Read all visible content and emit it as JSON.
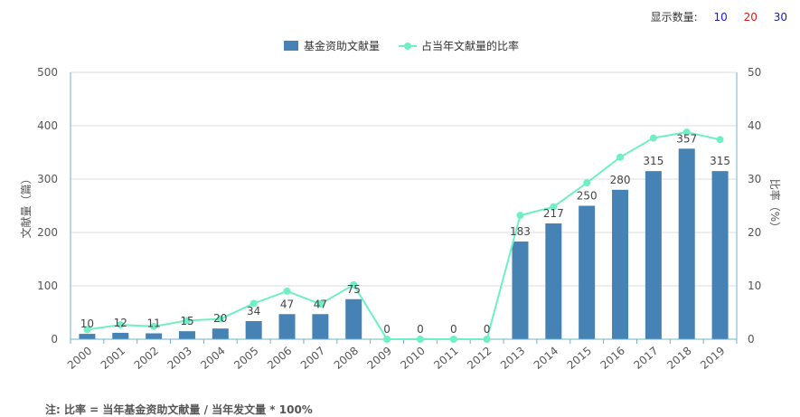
{
  "display_count": {
    "label": "显示数量:",
    "options": [
      {
        "label": "10",
        "color": "#1a1ad6"
      },
      {
        "label": "20",
        "color": "#d61a1a"
      },
      {
        "label": "30",
        "color": "#1a1a9a"
      }
    ]
  },
  "footnote": "注: 比率 = 当年基金资助文献量 / 当年发文量 * 100%",
  "chart_data": {
    "type": "bar",
    "categories": [
      "2000",
      "2001",
      "2002",
      "2003",
      "2004",
      "2005",
      "2006",
      "2007",
      "2008",
      "2009",
      "2010",
      "2011",
      "2012",
      "2013",
      "2014",
      "2015",
      "2016",
      "2017",
      "2018",
      "2019"
    ],
    "series": [
      {
        "name": "基金资助文献量",
        "type": "bar",
        "axis": "left",
        "color": "#4682b4",
        "values": [
          10,
          12,
          11,
          15,
          20,
          34,
          47,
          47,
          75,
          0,
          0,
          0,
          0,
          183,
          217,
          250,
          280,
          315,
          357,
          315
        ]
      },
      {
        "name": "占当年文献量的比率",
        "type": "line",
        "axis": "right",
        "color": "#6fefc4",
        "values": [
          1.8,
          2.7,
          2.4,
          3.5,
          3.8,
          6.7,
          9.0,
          6.6,
          10.2,
          0,
          0,
          0,
          0,
          23.2,
          24.8,
          29.3,
          34.1,
          37.7,
          38.8,
          37.4
        ]
      }
    ],
    "ylabel": "文献量（篇）",
    "y2label": "比率（%）",
    "ylim": [
      0,
      500
    ],
    "yticks": [
      0,
      100,
      200,
      300,
      400,
      500
    ],
    "y2lim": [
      0,
      50
    ],
    "y2ticks": [
      0,
      10,
      20,
      30,
      40,
      50
    ],
    "legend_position": "top-center",
    "grid": true
  }
}
